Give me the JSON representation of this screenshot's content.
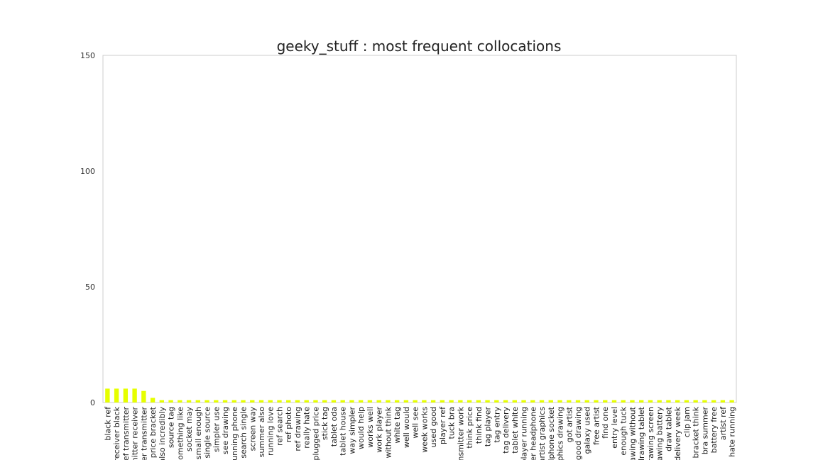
{
  "chart_data": {
    "type": "bar",
    "title": "geeky_stuff : most frequent collocations",
    "xlabel": "",
    "ylabel": "",
    "ylim": [
      0,
      150
    ],
    "yticks": [
      0,
      50,
      100,
      150
    ],
    "grid": false,
    "bar_color": "#e6ff00",
    "categories": [
      "black ref",
      "receiver black",
      "ref transmitter",
      "mitter receiver",
      "tter transmitter",
      "price bracket",
      "also incredibly",
      "source tag",
      "something like",
      "socket may",
      "small enough",
      "single source",
      "simpler use",
      "see drawing",
      "running phone",
      "search single",
      "screen way",
      "summer also",
      "running love",
      "ref search",
      "ref photo",
      "ref drawing",
      "really hate",
      "plugged price",
      "stick tag",
      "tablet oda",
      "tablet house",
      "way simpler",
      "would help",
      "works well",
      "work player",
      "without think",
      "white tag",
      "well would",
      "well see",
      "week works",
      "used good",
      "player ref",
      "tuck bra",
      "ansmitter work",
      "think price",
      "think find",
      "tag player",
      "tag entry",
      "tag delivery",
      "tablet white",
      "player running",
      "ver headphone",
      "artist graphics",
      "dphone socket",
      "aphics drawing",
      "got artist",
      "good drawing",
      "galaxy used",
      "free artist",
      "find one",
      "entry level",
      "enough tuck",
      "rawing without",
      "drawing tablet",
      "drawing screen",
      "drawing battery",
      "draw tablet",
      "delivery week",
      "clip jam",
      "bracket think",
      "bra summer",
      "battery free",
      "artist ref",
      "hate running"
    ],
    "values": [
      6,
      6,
      6,
      6,
      5,
      2,
      1,
      1,
      1,
      1,
      1,
      1,
      1,
      1,
      1,
      1,
      1,
      1,
      1,
      1,
      1,
      1,
      1,
      1,
      1,
      1,
      1,
      1,
      1,
      1,
      1,
      1,
      1,
      1,
      1,
      1,
      1,
      1,
      1,
      1,
      1,
      1,
      1,
      1,
      1,
      1,
      1,
      1,
      1,
      1,
      1,
      1,
      1,
      1,
      1,
      1,
      1,
      1,
      1,
      1,
      1,
      1,
      1,
      1,
      1,
      1,
      1,
      1,
      1,
      1
    ]
  }
}
